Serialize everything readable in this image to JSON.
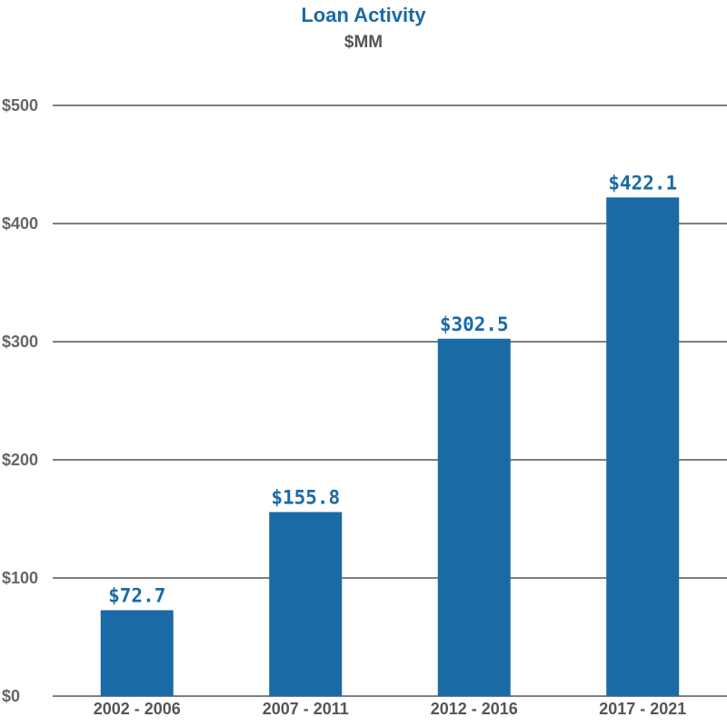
{
  "chart_data": {
    "type": "bar",
    "title": "Loan Activity",
    "subtitle": "$MM",
    "xlabel": "",
    "ylabel": "",
    "categories": [
      "2002 - 2006",
      "2007 - 2011",
      "2012 - 2016",
      "2017 - 2021"
    ],
    "values": [
      72.7,
      155.8,
      302.5,
      422.1
    ],
    "data_labels": [
      "$72.7",
      "$155.8",
      "$302.5",
      "$422.1"
    ],
    "ylim": [
      0,
      500
    ],
    "yticks": [
      0,
      100,
      200,
      300,
      400,
      500
    ],
    "ytick_labels": [
      "$0",
      "$100",
      "$200",
      "$300",
      "$400",
      "$500"
    ],
    "grid": true,
    "legend": "none",
    "bar_color": "#1a6aa6",
    "gridline_color": "#555555"
  }
}
